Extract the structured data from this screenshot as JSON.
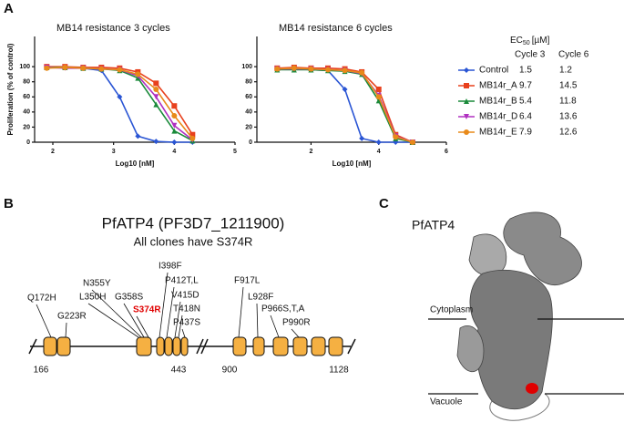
{
  "panel_labels": [
    "A",
    "B",
    "C"
  ],
  "chart_data": [
    {
      "type": "line",
      "title": "MB14 resistance 3 cycles",
      "xlabel": "Log10 [nM]",
      "ylabel": "Proliferation (% of control)",
      "x": [
        1.9,
        2.2,
        2.5,
        2.8,
        3.1,
        3.4,
        3.7,
        4.0,
        4.3
      ],
      "xlim": [
        1.7,
        5
      ],
      "xticks": [
        2,
        3,
        4,
        5
      ],
      "ylim": [
        0,
        140
      ],
      "yticks": [
        0,
        20,
        40,
        60,
        80,
        100
      ],
      "series": [
        {
          "name": "Control",
          "color": "#2a55d4",
          "marker": "diamond",
          "values": [
            100,
            99,
            98,
            95,
            60,
            8,
            1,
            0,
            0
          ]
        },
        {
          "name": "MB14r_A",
          "color": "#e8401c",
          "marker": "square",
          "values": [
            100,
            100,
            99,
            99,
            98,
            93,
            78,
            48,
            10
          ]
        },
        {
          "name": "MB14r_B",
          "color": "#1a8a3a",
          "marker": "triangle",
          "values": [
            99,
            99,
            98,
            97,
            95,
            85,
            50,
            15,
            2
          ]
        },
        {
          "name": "MB14r_D",
          "color": "#b030c0",
          "marker": "triangle-down",
          "values": [
            99,
            98,
            98,
            97,
            96,
            88,
            60,
            22,
            3
          ]
        },
        {
          "name": "MB14r_E",
          "color": "#e88a1a",
          "marker": "circle",
          "values": [
            98,
            99,
            98,
            97,
            96,
            90,
            70,
            35,
            5
          ]
        }
      ]
    },
    {
      "type": "line",
      "title": "MB14 resistance 6 cycles",
      "xlabel": "Log10 [nM]",
      "x": [
        1,
        1.5,
        2,
        2.5,
        3,
        3.5,
        4,
        4.5,
        5
      ],
      "xlim": [
        0.4,
        6
      ],
      "xticks": [
        2,
        4,
        6
      ],
      "ylim": [
        0,
        140
      ],
      "yticks": [
        0,
        20,
        40,
        60,
        80,
        100
      ],
      "series": [
        {
          "name": "Control",
          "color": "#2a55d4",
          "marker": "diamond",
          "values": [
            97,
            97,
            96,
            95,
            70,
            5,
            0,
            0,
            0
          ]
        },
        {
          "name": "MB14r_A",
          "color": "#e8401c",
          "marker": "square",
          "values": [
            98,
            99,
            98,
            98,
            97,
            93,
            70,
            10,
            0
          ]
        },
        {
          "name": "MB14r_B",
          "color": "#1a8a3a",
          "marker": "triangle",
          "values": [
            96,
            96,
            96,
            95,
            94,
            90,
            55,
            5,
            0
          ]
        },
        {
          "name": "MB14r_D",
          "color": "#b030c0",
          "marker": "triangle-down",
          "values": [
            97,
            97,
            97,
            96,
            95,
            91,
            62,
            8,
            0
          ]
        },
        {
          "name": "MB14r_E",
          "color": "#e88a1a",
          "marker": "circle",
          "values": [
            97,
            98,
            97,
            96,
            95,
            92,
            60,
            7,
            0
          ]
        }
      ]
    }
  ],
  "ec50_table": {
    "header": [
      "EC",
      "50",
      "[µM]"
    ],
    "columns": [
      "Cycle 3",
      "Cycle 6"
    ],
    "rows": [
      [
        1.5,
        1.2
      ],
      [
        9.7,
        14.5
      ],
      [
        5.4,
        11.8
      ],
      [
        6.4,
        13.6
      ],
      [
        7.9,
        12.6
      ]
    ]
  },
  "panel_b": {
    "title": "PfATP4 (PF3D7_1211900)",
    "subtitle": "All clones have S374R",
    "mutations": [
      "Q172H",
      "G223R",
      "L350H",
      "N355Y",
      "G358S",
      "S374R",
      "I398F",
      "P412T,L",
      "V415D",
      "T418N",
      "P437S",
      "F917L",
      "L928F",
      "P966S,T,A",
      "P990R"
    ],
    "residues": [
      166,
      443,
      900,
      1128
    ]
  },
  "panel_c": {
    "title": "PfATP4",
    "regions": [
      "Cytoplasm",
      "Vacuole"
    ]
  }
}
